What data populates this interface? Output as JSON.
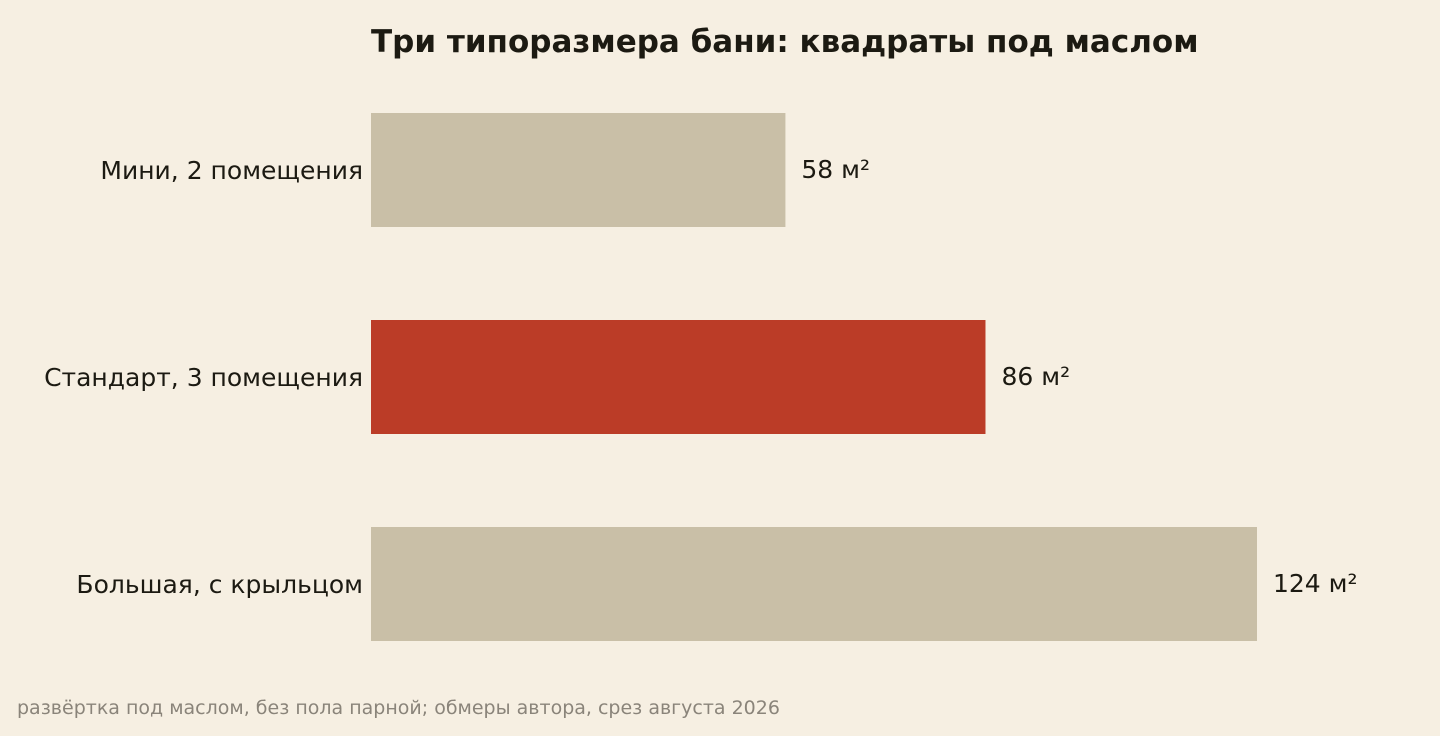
{
  "chart_data": {
    "type": "bar",
    "orientation": "horizontal",
    "title": "Три типоразмера бани: квадраты под маслом",
    "categories": [
      "Мини, 2 помещения",
      "Стандарт, 3 помещения",
      "Большая, с крыльцом"
    ],
    "values": [
      58,
      86,
      124
    ],
    "value_labels": [
      "58 м²",
      "86 м²",
      "124 м²"
    ],
    "highlight_index": 1,
    "xlim": [
      0,
      124
    ],
    "grid": false,
    "legend": "none",
    "colors": {
      "bar": "#c9bfa7",
      "highlight": "#bb3c27",
      "background": "#f6efe2",
      "text": "#1c1a12",
      "footnote": "#8a847a"
    }
  },
  "footnote": "развёртка под маслом, без пола парной; обмеры автора, срез августа 2026"
}
